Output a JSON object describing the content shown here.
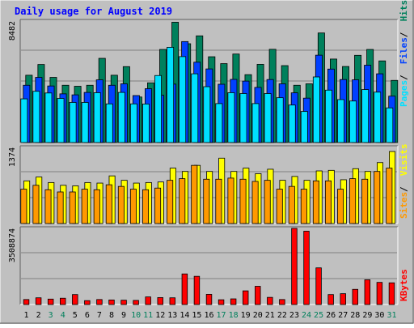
{
  "chart_data": [
    {
      "type": "bar",
      "title": "Daily usage for August 2019",
      "categories": [
        "1",
        "2",
        "3",
        "4",
        "5",
        "6",
        "7",
        "8",
        "9",
        "10",
        "11",
        "12",
        "13",
        "14",
        "15",
        "16",
        "17",
        "18",
        "19",
        "20",
        "21",
        "22",
        "23",
        "24",
        "25",
        "26",
        "27",
        "28",
        "29",
        "30",
        "31"
      ],
      "weekend_days": [
        "3",
        "4",
        "10",
        "11",
        "17",
        "18",
        "24",
        "25",
        "31"
      ],
      "ymax_label": "8482",
      "ylim": [
        0,
        8482
      ],
      "legend": [
        "Pages",
        "Files",
        "Hits"
      ],
      "series": [
        {
          "name": "Hits",
          "values": [
            4700,
            5450,
            4550,
            4000,
            3930,
            4000,
            5880,
            4700,
            5300,
            3180,
            4170,
            6500,
            8400,
            6900,
            7450,
            5990,
            5510,
            6180,
            4740,
            5460,
            6510,
            5370,
            4000,
            4100,
            7650,
            5830,
            5310,
            6090,
            6500,
            5700,
            4340
          ]
        },
        {
          "name": "Files",
          "values": [
            4000,
            4550,
            3950,
            3400,
            3330,
            3500,
            4380,
            4000,
            4100,
            3280,
            3760,
            3300,
            4080,
            7050,
            5610,
            5140,
            4070,
            4410,
            4290,
            3850,
            4400,
            4100,
            3470,
            3100,
            6100,
            5130,
            4400,
            4380,
            5400,
            4800,
            3240
          ]
        },
        {
          "name": "Pages",
          "values": [
            3050,
            3580,
            3460,
            3080,
            2800,
            2800,
            3480,
            2700,
            3500,
            2700,
            2690,
            4680,
            6650,
            6000,
            4800,
            3900,
            2720,
            3480,
            3420,
            2720,
            3420,
            3130,
            2620,
            2170,
            4580,
            3660,
            3000,
            2900,
            3700,
            3520,
            2420
          ]
        }
      ],
      "colors": {
        "Hits": "#00805c",
        "Files": "#0040ff",
        "Pages": "#00e0ff"
      }
    },
    {
      "type": "bar",
      "ymax_label": "1374",
      "ylim": [
        0,
        1374
      ],
      "legend": [
        "Sites",
        "Visits"
      ],
      "series": [
        {
          "name": "Visits",
          "values": [
            770,
            840,
            740,
            690,
            680,
            740,
            730,
            860,
            780,
            730,
            740,
            750,
            1000,
            940,
            1050,
            940,
            1180,
            940,
            1000,
            900,
            980,
            780,
            850,
            780,
            950,
            960,
            790,
            990,
            940,
            1100,
            1300,
            1000
          ]
        },
        {
          "name": "Sites",
          "values": [
            620,
            690,
            610,
            570,
            570,
            620,
            610,
            700,
            670,
            620,
            610,
            640,
            780,
            810,
            1050,
            800,
            800,
            820,
            800,
            760,
            780,
            620,
            670,
            620,
            770,
            770,
            620,
            810,
            800,
            940,
            1000,
            880
          ]
        }
      ],
      "colors": {
        "Visits": "#ffff00",
        "Sites": "#ff9900"
      }
    },
    {
      "type": "bar",
      "ymax_label": "3508874",
      "ylim": [
        0,
        3508874
      ],
      "legend": [
        "KBytes"
      ],
      "series": [
        {
          "name": "KBytes",
          "values": [
            230000,
            310000,
            250000,
            290000,
            460000,
            180000,
            230000,
            210000,
            200000,
            190000,
            350000,
            320000,
            310000,
            1410000,
            1300000,
            470000,
            220000,
            260000,
            630000,
            840000,
            330000,
            230000,
            3510000,
            3380000,
            1690000,
            460000,
            500000,
            700000,
            1140000,
            1020000,
            1000000
          ]
        }
      ],
      "colors": {
        "KBytes": "#ff0000"
      }
    }
  ]
}
